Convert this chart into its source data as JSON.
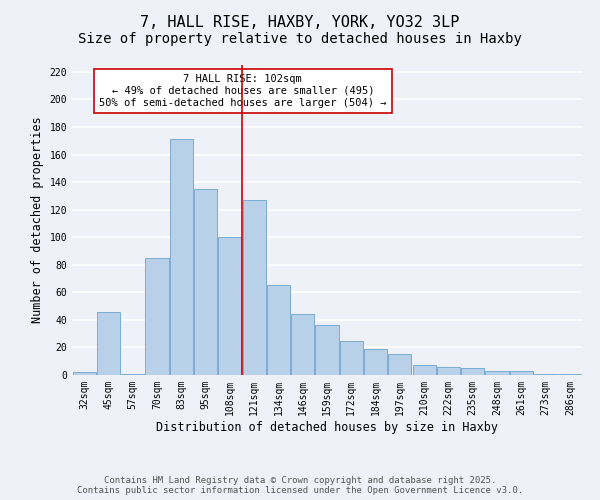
{
  "title": "7, HALL RISE, HAXBY, YORK, YO32 3LP",
  "subtitle": "Size of property relative to detached houses in Haxby",
  "xlabel": "Distribution of detached houses by size in Haxby",
  "ylabel": "Number of detached properties",
  "categories": [
    "32sqm",
    "45sqm",
    "57sqm",
    "70sqm",
    "83sqm",
    "95sqm",
    "108sqm",
    "121sqm",
    "134sqm",
    "146sqm",
    "159sqm",
    "172sqm",
    "184sqm",
    "197sqm",
    "210sqm",
    "222sqm",
    "235sqm",
    "248sqm",
    "261sqm",
    "273sqm",
    "286sqm"
  ],
  "values": [
    2,
    46,
    1,
    85,
    171,
    135,
    100,
    127,
    65,
    44,
    36,
    25,
    19,
    15,
    7,
    6,
    5,
    3,
    3,
    1,
    1
  ],
  "bar_color": "#b8d0e8",
  "bar_edgecolor": "#7aadd4",
  "vline_x_index": 6.5,
  "vline_color": "#cc0000",
  "annotation_text": "7 HALL RISE: 102sqm\n← 49% of detached houses are smaller (495)\n50% of semi-detached houses are larger (504) →",
  "annotation_box_edgecolor": "#cc0000",
  "annotation_box_facecolor": "white",
  "ylim": [
    0,
    225
  ],
  "yticks": [
    0,
    20,
    40,
    60,
    80,
    100,
    120,
    140,
    160,
    180,
    200,
    220
  ],
  "footer1": "Contains HM Land Registry data © Crown copyright and database right 2025.",
  "footer2": "Contains public sector information licensed under the Open Government Licence v3.0.",
  "background_color": "#eef2f8",
  "grid_color": "#ffffff",
  "title_fontsize": 11,
  "axis_label_fontsize": 8.5,
  "tick_fontsize": 7,
  "footer_fontsize": 6.5,
  "annotation_fontsize": 7.5
}
